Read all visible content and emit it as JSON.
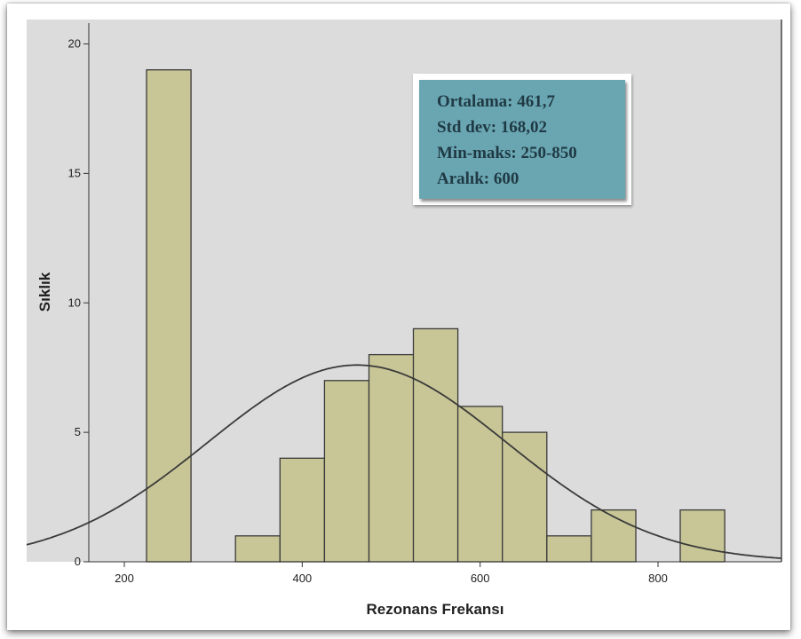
{
  "chart_data": {
    "type": "bar",
    "subtype": "histogram",
    "xlabel": "Rezonans Frekansı",
    "ylabel": "Sıklık",
    "bins": [
      {
        "start": 225,
        "end": 275,
        "count": 19
      },
      {
        "start": 275,
        "end": 325,
        "count": 0
      },
      {
        "start": 325,
        "end": 375,
        "count": 1
      },
      {
        "start": 375,
        "end": 425,
        "count": 4
      },
      {
        "start": 425,
        "end": 475,
        "count": 7
      },
      {
        "start": 475,
        "end": 525,
        "count": 8
      },
      {
        "start": 525,
        "end": 575,
        "count": 9
      },
      {
        "start": 575,
        "end": 625,
        "count": 6
      },
      {
        "start": 625,
        "end": 675,
        "count": 5
      },
      {
        "start": 675,
        "end": 725,
        "count": 1
      },
      {
        "start": 725,
        "end": 775,
        "count": 2
      },
      {
        "start": 775,
        "end": 825,
        "count": 0
      },
      {
        "start": 825,
        "end": 875,
        "count": 2
      }
    ],
    "xticks": [
      "200",
      "400",
      "600",
      "800"
    ],
    "yticks": [
      "0",
      "5",
      "10",
      "15",
      "20"
    ],
    "xlim": [
      160,
      940
    ],
    "ylim": [
      0,
      20.9
    ],
    "normal_curve": {
      "mean": 461.7,
      "std": 168.02,
      "n": 64,
      "bin_width": 50
    },
    "grid": false,
    "bar_color": "#c8c696",
    "plot_background": "#dcdcdc",
    "curve_color": "#3a3a3a",
    "stats_box": {
      "lines": [
        "Ortalama: 461,7",
        "Std dev: 168,02",
        "Min-maks: 250-850",
        "Aralık: 600"
      ],
      "background": "#6aa6b2"
    }
  }
}
